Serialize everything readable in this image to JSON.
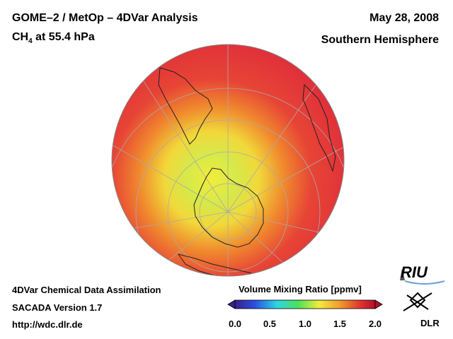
{
  "header": {
    "title": "GOME–2 / MetOp – 4DVar Analysis",
    "species": "CH",
    "species_sub": "4",
    "level": " at 55.4 hPa",
    "date": "May 28, 2008",
    "region": "Southern Hemisphere"
  },
  "footer": {
    "line1": "4DVar Chemical Data Assimilation",
    "line2": "SACADA Version 1.7",
    "line3": "http://wdc.dlr.de"
  },
  "colorbar": {
    "title": "Volume Mixing Ratio [ppmv]",
    "ticks": [
      "0.0",
      "0.5",
      "1.0",
      "1.5",
      "2.0"
    ],
    "range": [
      0,
      2.0
    ]
  },
  "logos": {
    "riu": "RIU",
    "dlr": "DLR"
  },
  "colors": {
    "low": "#3b1f8c",
    "mid": "#f2ec3a",
    "high": "#d8142b"
  }
}
